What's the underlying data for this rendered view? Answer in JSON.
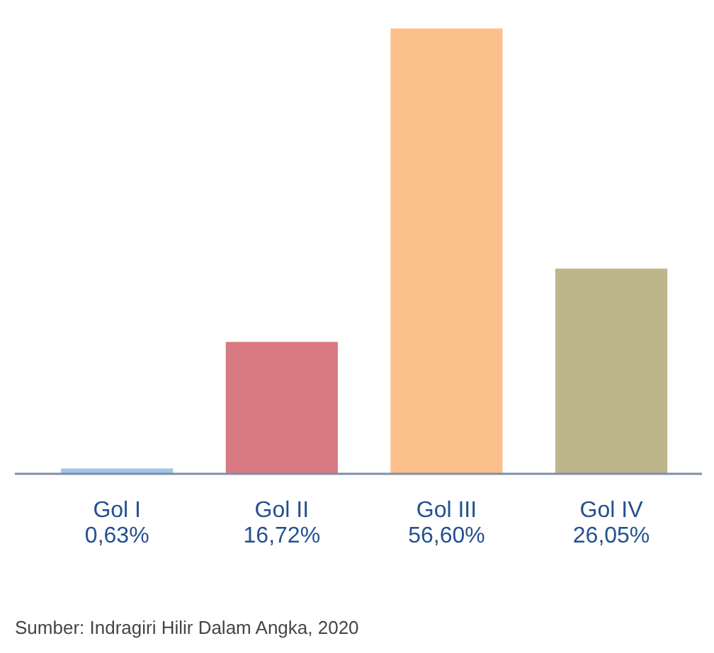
{
  "chart_data": {
    "type": "bar",
    "categories": [
      "Gol I",
      "Gol II",
      "Gol III",
      "Gol IV"
    ],
    "values": [
      0.63,
      16.72,
      56.6,
      26.05
    ],
    "colors": [
      "#9fc5ea",
      "#d97a82",
      "#fcc08c",
      "#bdb68c"
    ],
    "value_labels": [
      "0,63%",
      "16,72%",
      "56,60%",
      "26,05%"
    ],
    "annotations": [
      "Sumber: Indragiri Hilir Dalam Angka, 2020"
    ]
  }
}
